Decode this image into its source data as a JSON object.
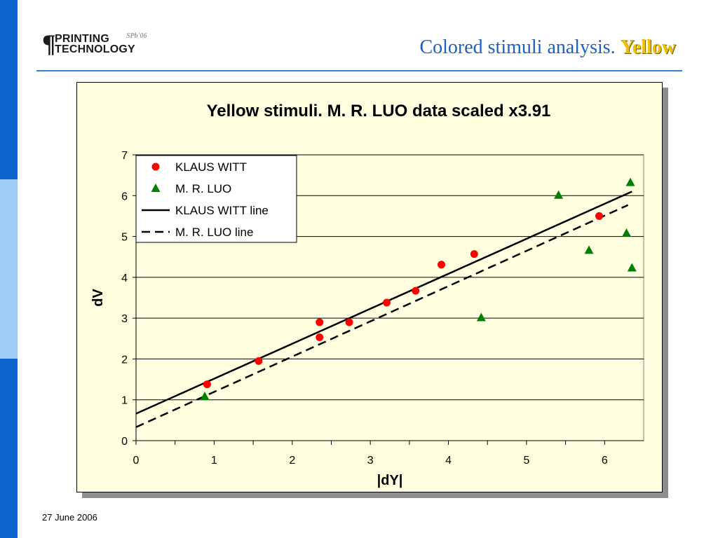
{
  "slide": {
    "logo": {
      "line1": "PRINTING",
      "line2": "TECHNOLOGY",
      "tag": "SPb'06"
    },
    "title_main": "Colored stimuli analysis.",
    "title_highlight": "Yellow",
    "footer_date": "27 June 2006",
    "colors": {
      "accent": "#1f5fbf",
      "highlight": "#f2c200",
      "sidebar": "#0d63cf"
    }
  },
  "chart_data": {
    "type": "scatter",
    "title": "Yellow stimuli. M. R. LUO data scaled x3.91",
    "xlabel": "|dY|",
    "ylabel": "dV",
    "xlim": [
      0,
      6.5
    ],
    "ylim": [
      0,
      7
    ],
    "xticks": [
      0,
      1,
      2,
      3,
      4,
      5,
      6
    ],
    "yticks": [
      0,
      1,
      2,
      3,
      4,
      5,
      6,
      7
    ],
    "grid": "horizontal",
    "legend_position": "top-left",
    "series": [
      {
        "name": "KLAUS WITT",
        "kind": "markers",
        "marker": "circle",
        "color": "#ff0000",
        "x": [
          0.91,
          1.57,
          2.35,
          2.35,
          2.73,
          3.21,
          3.58,
          3.91,
          4.33,
          5.93
        ],
        "y": [
          1.38,
          1.95,
          2.53,
          2.9,
          2.9,
          3.38,
          3.67,
          4.31,
          4.57,
          5.5
        ]
      },
      {
        "name": "M. R. LUO",
        "kind": "markers",
        "marker": "triangle",
        "color": "#007f00",
        "x": [
          0.88,
          4.42,
          5.41,
          5.8,
          6.28,
          6.33,
          6.35
        ],
        "y": [
          1.08,
          3.01,
          6.01,
          4.66,
          5.08,
          6.32,
          4.23
        ]
      },
      {
        "name": "KLAUS WITT line",
        "kind": "line",
        "style": "solid",
        "color": "#000000",
        "x": [
          0,
          6.35
        ],
        "y": [
          0.66,
          6.1
        ]
      },
      {
        "name": "M. R. LUO line",
        "kind": "line",
        "style": "dashed",
        "color": "#000000",
        "x": [
          0,
          6.3
        ],
        "y": [
          0.33,
          5.77
        ]
      }
    ]
  }
}
